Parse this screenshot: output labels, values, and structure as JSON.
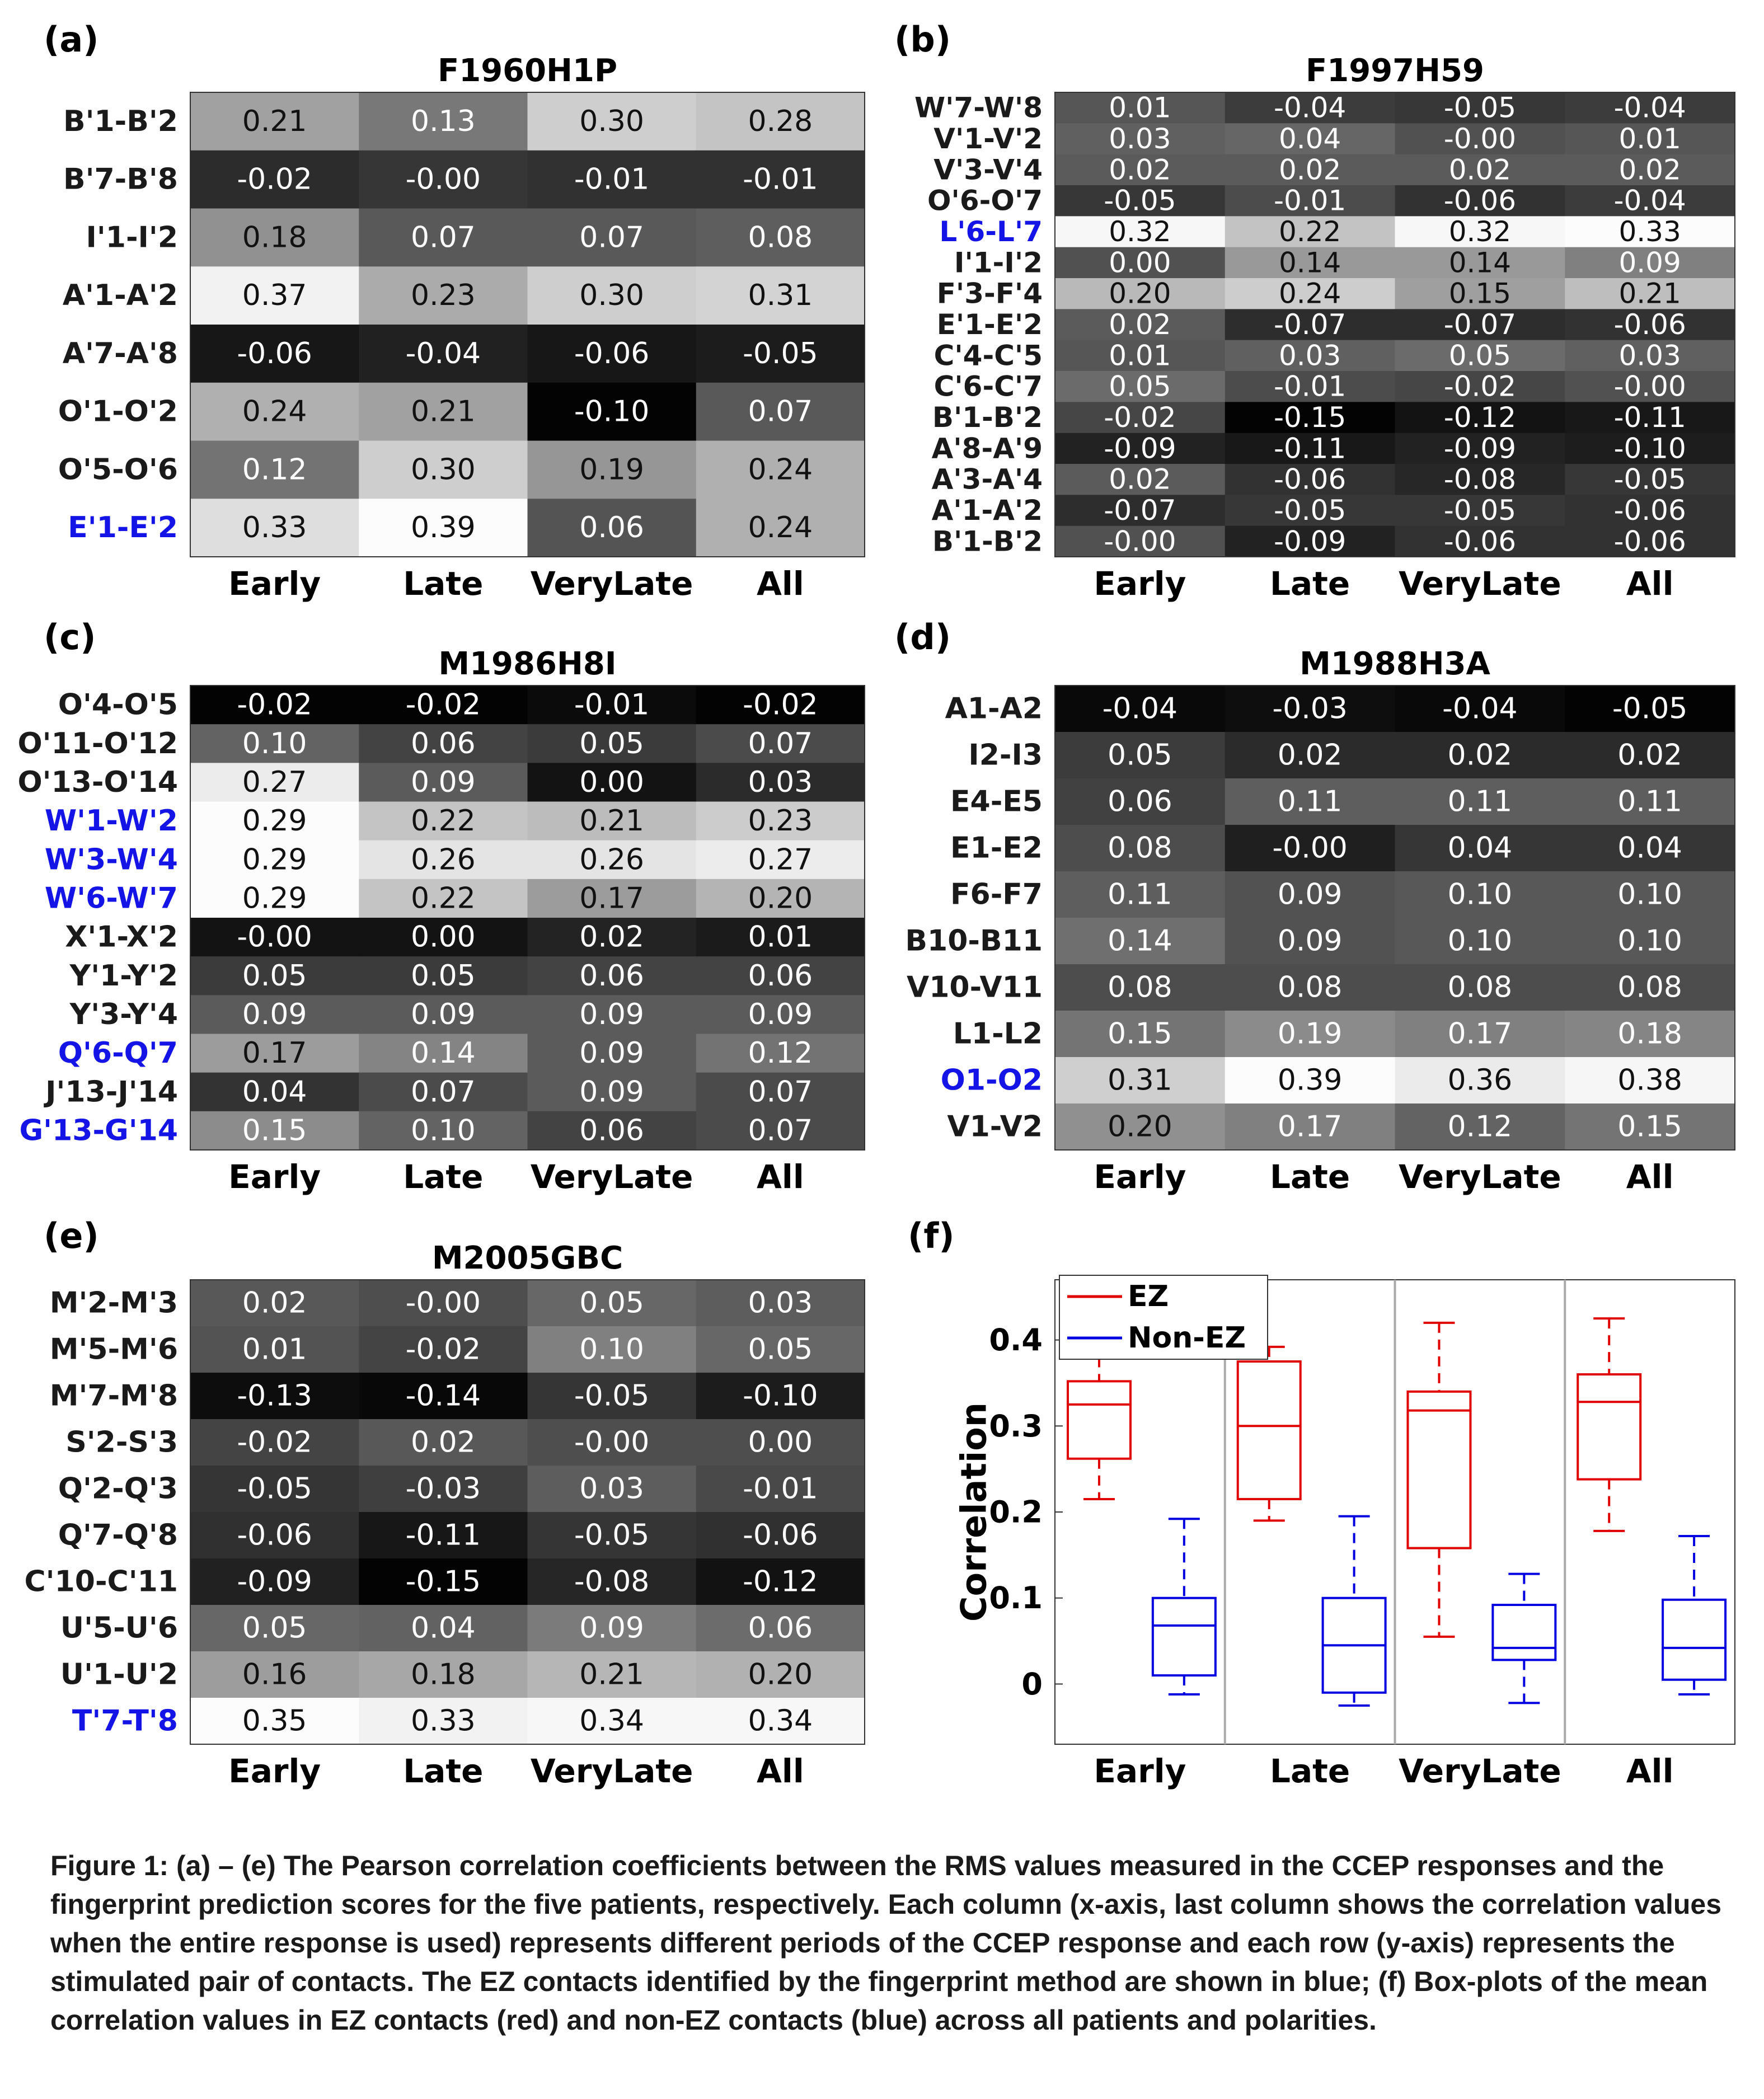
{
  "columns": [
    "Early",
    "Late",
    "VeryLate",
    "All"
  ],
  "ez_color": "#1414e6",
  "chart_data": [
    {
      "type": "heatmap",
      "panel_label": "(a)",
      "title": "F1960H1P",
      "rows": [
        {
          "label": "B'1-B'2",
          "ez": false,
          "values": [
            0.21,
            0.13,
            0.3,
            0.28
          ]
        },
        {
          "label": "B'7-B'8",
          "ez": false,
          "values": [
            -0.02,
            -0.0,
            -0.01,
            -0.01
          ]
        },
        {
          "label": "I'1-I'2",
          "ez": false,
          "values": [
            0.18,
            0.07,
            0.07,
            0.08
          ]
        },
        {
          "label": "A'1-A'2",
          "ez": false,
          "values": [
            0.37,
            0.23,
            0.3,
            0.31
          ]
        },
        {
          "label": "A'7-A'8",
          "ez": false,
          "values": [
            -0.06,
            -0.04,
            -0.06,
            -0.05
          ]
        },
        {
          "label": "O'1-O'2",
          "ez": false,
          "values": [
            0.24,
            0.21,
            -0.1,
            0.07
          ]
        },
        {
          "label": "O'5-O'6",
          "ez": false,
          "values": [
            0.12,
            0.3,
            0.19,
            0.24
          ]
        },
        {
          "label": "E'1-E'2",
          "ez": true,
          "values": [
            0.33,
            0.39,
            0.06,
            0.24
          ]
        }
      ]
    },
    {
      "type": "heatmap",
      "panel_label": "(b)",
      "title": "F1997H59",
      "rows": [
        {
          "label": "W'7-W'8",
          "ez": false,
          "values": [
            0.01,
            -0.04,
            -0.05,
            -0.04
          ]
        },
        {
          "label": "V'1-V'2",
          "ez": false,
          "values": [
            0.03,
            0.04,
            -0.0,
            0.01
          ]
        },
        {
          "label": "V'3-V'4",
          "ez": false,
          "values": [
            0.02,
            0.02,
            0.02,
            0.02
          ]
        },
        {
          "label": "O'6-O'7",
          "ez": false,
          "values": [
            -0.05,
            -0.01,
            -0.06,
            -0.04
          ]
        },
        {
          "label": "L'6-L'7",
          "ez": true,
          "values": [
            0.32,
            0.22,
            0.32,
            0.33
          ]
        },
        {
          "label": "I'1-I'2",
          "ez": false,
          "values": [
            0.0,
            0.14,
            0.14,
            0.09
          ]
        },
        {
          "label": "F'3-F'4",
          "ez": false,
          "values": [
            0.2,
            0.24,
            0.15,
            0.21
          ]
        },
        {
          "label": "E'1-E'2",
          "ez": false,
          "values": [
            0.02,
            -0.07,
            -0.07,
            -0.06
          ]
        },
        {
          "label": "C'4-C'5",
          "ez": false,
          "values": [
            0.01,
            0.03,
            0.05,
            0.03
          ]
        },
        {
          "label": "C'6-C'7",
          "ez": false,
          "values": [
            0.05,
            -0.01,
            -0.02,
            -0.0
          ]
        },
        {
          "label": "B'1-B'2",
          "ez": false,
          "values": [
            -0.02,
            -0.15,
            -0.12,
            -0.11
          ]
        },
        {
          "label": "A'8-A'9",
          "ez": false,
          "values": [
            -0.09,
            -0.11,
            -0.09,
            -0.1
          ]
        },
        {
          "label": "A'3-A'4",
          "ez": false,
          "values": [
            0.02,
            -0.06,
            -0.08,
            -0.05
          ]
        },
        {
          "label": "A'1-A'2",
          "ez": false,
          "values": [
            -0.07,
            -0.05,
            -0.05,
            -0.06
          ]
        },
        {
          "label": "B'1-B'2",
          "ez": false,
          "values": [
            -0.0,
            -0.09,
            -0.06,
            -0.06
          ]
        }
      ]
    },
    {
      "type": "heatmap",
      "panel_label": "(c)",
      "title": "M1986H8I",
      "rows": [
        {
          "label": "O'4-O'5",
          "ez": false,
          "values": [
            -0.02,
            -0.02,
            -0.01,
            -0.02
          ]
        },
        {
          "label": "O'11-O'12",
          "ez": false,
          "values": [
            0.1,
            0.06,
            0.05,
            0.07
          ]
        },
        {
          "label": "O'13-O'14",
          "ez": false,
          "values": [
            0.27,
            0.09,
            0.0,
            0.03
          ]
        },
        {
          "label": "W'1-W'2",
          "ez": true,
          "values": [
            0.29,
            0.22,
            0.21,
            0.23
          ]
        },
        {
          "label": "W'3-W'4",
          "ez": true,
          "values": [
            0.29,
            0.26,
            0.26,
            0.27
          ]
        },
        {
          "label": "W'6-W'7",
          "ez": true,
          "values": [
            0.29,
            0.22,
            0.17,
            0.2
          ]
        },
        {
          "label": "X'1-X'2",
          "ez": false,
          "values": [
            -0.0,
            0.0,
            0.02,
            0.01
          ]
        },
        {
          "label": "Y'1-Y'2",
          "ez": false,
          "values": [
            0.05,
            0.05,
            0.06,
            0.06
          ]
        },
        {
          "label": "Y'3-Y'4",
          "ez": false,
          "values": [
            0.09,
            0.09,
            0.09,
            0.09
          ]
        },
        {
          "label": "Q'6-Q'7",
          "ez": true,
          "values": [
            0.17,
            0.14,
            0.09,
            0.12
          ]
        },
        {
          "label": "J'13-J'14",
          "ez": false,
          "values": [
            0.04,
            0.07,
            0.09,
            0.07
          ]
        },
        {
          "label": "G'13-G'14",
          "ez": true,
          "values": [
            0.15,
            0.1,
            0.06,
            0.07
          ]
        }
      ]
    },
    {
      "type": "heatmap",
      "panel_label": "(d)",
      "title": "M1988H3A",
      "rows": [
        {
          "label": "A1-A2",
          "ez": false,
          "values": [
            -0.04,
            -0.03,
            -0.04,
            -0.05
          ]
        },
        {
          "label": "I2-I3",
          "ez": false,
          "values": [
            0.05,
            0.02,
            0.02,
            0.02
          ]
        },
        {
          "label": "E4-E5",
          "ez": false,
          "values": [
            0.06,
            0.11,
            0.11,
            0.11
          ]
        },
        {
          "label": "E1-E2",
          "ez": false,
          "values": [
            0.08,
            -0.0,
            0.04,
            0.04
          ]
        },
        {
          "label": "F6-F7",
          "ez": false,
          "values": [
            0.11,
            0.09,
            0.1,
            0.1
          ]
        },
        {
          "label": "B10-B11",
          "ez": false,
          "values": [
            0.14,
            0.09,
            0.1,
            0.1
          ]
        },
        {
          "label": "V10-V11",
          "ez": false,
          "values": [
            0.08,
            0.08,
            0.08,
            0.08
          ]
        },
        {
          "label": "L1-L2",
          "ez": false,
          "values": [
            0.15,
            0.19,
            0.17,
            0.18
          ]
        },
        {
          "label": "O1-O2",
          "ez": true,
          "values": [
            0.31,
            0.39,
            0.36,
            0.38
          ]
        },
        {
          "label": "V1-V2",
          "ez": false,
          "values": [
            0.2,
            0.17,
            0.12,
            0.15
          ]
        }
      ]
    },
    {
      "type": "heatmap",
      "panel_label": "(e)",
      "title": "M2005GBC",
      "rows": [
        {
          "label": "M'2-M'3",
          "ez": false,
          "values": [
            0.02,
            -0.0,
            0.05,
            0.03
          ]
        },
        {
          "label": "M'5-M'6",
          "ez": false,
          "values": [
            0.01,
            -0.02,
            0.1,
            0.05
          ]
        },
        {
          "label": "M'7-M'8",
          "ez": false,
          "values": [
            -0.13,
            -0.14,
            -0.05,
            -0.1
          ]
        },
        {
          "label": "S'2-S'3",
          "ez": false,
          "values": [
            -0.02,
            0.02,
            -0.0,
            0.0
          ]
        },
        {
          "label": "Q'2-Q'3",
          "ez": false,
          "values": [
            -0.05,
            -0.03,
            0.03,
            -0.01
          ]
        },
        {
          "label": "Q'7-Q'8",
          "ez": false,
          "values": [
            -0.06,
            -0.11,
            -0.05,
            -0.06
          ]
        },
        {
          "label": "C'10-C'11",
          "ez": false,
          "values": [
            -0.09,
            -0.15,
            -0.08,
            -0.12
          ]
        },
        {
          "label": "U'5-U'6",
          "ez": false,
          "values": [
            0.05,
            0.04,
            0.09,
            0.06
          ]
        },
        {
          "label": "U'1-U'2",
          "ez": false,
          "values": [
            0.16,
            0.18,
            0.21,
            0.2
          ]
        },
        {
          "label": "T'7-T'8",
          "ez": true,
          "values": [
            0.35,
            0.33,
            0.34,
            0.34
          ]
        }
      ]
    },
    {
      "type": "box",
      "panel_label": "(f)",
      "title": "",
      "ylabel": "Correlation",
      "ylim": [
        -0.07,
        0.47
      ],
      "yticks": [
        0,
        0.1,
        0.2,
        0.3,
        0.4
      ],
      "ytick_labels": [
        "0",
        "0.1",
        "0.2",
        "0.3",
        "0.4"
      ],
      "categories": [
        "Early",
        "Late",
        "VeryLate",
        "All"
      ],
      "series": [
        {
          "name": "EZ",
          "color": "#e00000",
          "boxes": [
            {
              "min": 0.215,
              "q1": 0.262,
              "median": 0.325,
              "q3": 0.352,
              "max": 0.38
            },
            {
              "min": 0.19,
              "q1": 0.215,
              "median": 0.3,
              "q3": 0.375,
              "max": 0.392
            },
            {
              "min": 0.055,
              "q1": 0.158,
              "median": 0.318,
              "q3": 0.34,
              "max": 0.42
            },
            {
              "min": 0.178,
              "q1": 0.238,
              "median": 0.328,
              "q3": 0.36,
              "max": 0.425
            }
          ]
        },
        {
          "name": "Non-EZ",
          "color": "#0000e0",
          "boxes": [
            {
              "min": -0.012,
              "q1": 0.01,
              "median": 0.068,
              "q3": 0.1,
              "max": 0.192
            },
            {
              "min": -0.025,
              "q1": -0.01,
              "median": 0.045,
              "q3": 0.1,
              "max": 0.195
            },
            {
              "min": -0.022,
              "q1": 0.028,
              "median": 0.042,
              "q3": 0.092,
              "max": 0.128
            },
            {
              "min": -0.012,
              "q1": 0.005,
              "median": 0.042,
              "q3": 0.098,
              "max": 0.172
            }
          ]
        }
      ]
    }
  ],
  "caption": "Figure 1: (a) – (e) The Pearson correlation coefficients between the RMS values measured in the CCEP responses and the fingerprint prediction scores for the five patients, respectively. Each column (x-axis, last column shows the correlation values when the entire response is used) represents different periods of the CCEP response and each row (y-axis) represents the stimulated pair of contacts. The EZ contacts identified by the fingerprint method are shown in blue; (f) Box-plots of the mean correlation values in EZ contacts (red) and non-EZ contacts (blue) across all patients and polarities."
}
